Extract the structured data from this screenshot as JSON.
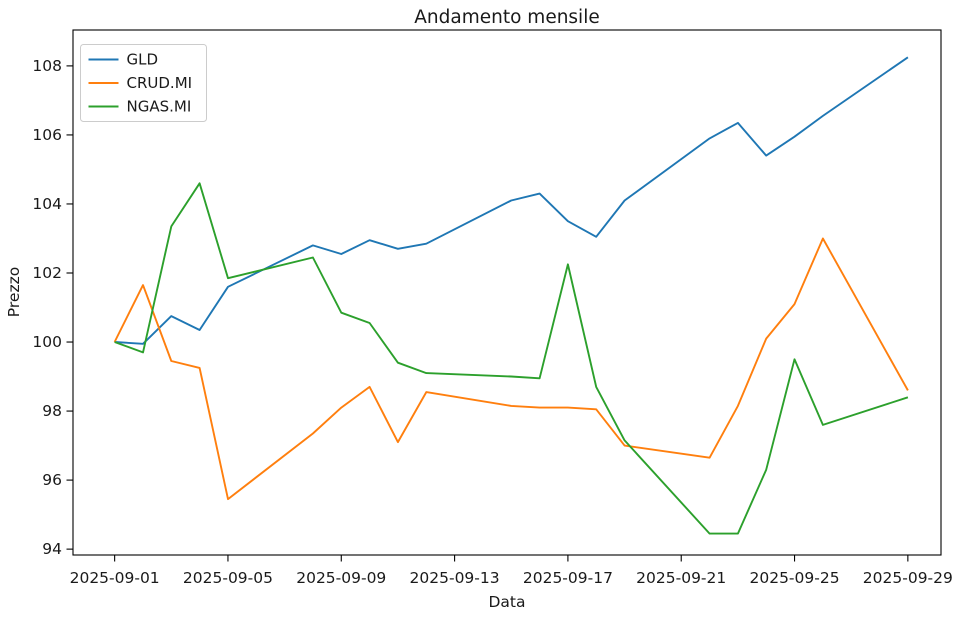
{
  "figure": {
    "background": "#ffffff",
    "text_color": "#1a1a1a",
    "axis_color": "#000000"
  },
  "chart_data": {
    "type": "line",
    "title": "Andamento mensile",
    "xlabel": "Data",
    "ylabel": "Prezzo",
    "grid": false,
    "legend_position": "upper-left",
    "x": [
      "2025-09-01",
      "2025-09-02",
      "2025-09-03",
      "2025-09-04",
      "2025-09-05",
      "2025-09-08",
      "2025-09-09",
      "2025-09-10",
      "2025-09-11",
      "2025-09-12",
      "2025-09-15",
      "2025-09-16",
      "2025-09-17",
      "2025-09-18",
      "2025-09-19",
      "2025-09-22",
      "2025-09-23",
      "2025-09-24",
      "2025-09-25",
      "2025-09-26",
      "2025-09-29"
    ],
    "series": [
      {
        "name": "GLD",
        "color": "#1f77b4",
        "values": [
          100.0,
          99.95,
          100.75,
          100.35,
          101.6,
          102.8,
          102.55,
          102.95,
          102.7,
          102.85,
          104.1,
          104.3,
          103.5,
          103.05,
          104.1,
          105.9,
          106.35,
          105.4,
          105.95,
          106.55,
          108.25
        ]
      },
      {
        "name": "CRUD.MI",
        "color": "#ff7f0e",
        "values": [
          100.0,
          101.65,
          99.45,
          99.25,
          95.45,
          97.35,
          98.1,
          98.7,
          97.1,
          98.55,
          98.15,
          98.1,
          98.1,
          98.05,
          97.0,
          96.65,
          98.15,
          100.1,
          101.1,
          103.0,
          98.6
        ]
      },
      {
        "name": "NGAS.MI",
        "color": "#2ca02c",
        "values": [
          100.0,
          99.7,
          103.35,
          104.6,
          101.85,
          102.45,
          100.85,
          100.55,
          99.4,
          99.1,
          99.0,
          98.95,
          102.25,
          98.7,
          97.15,
          94.45,
          94.45,
          96.3,
          99.5,
          97.6,
          98.4
        ]
      }
    ],
    "x_tick_labels": [
      "2025-09-01",
      "2025-09-05",
      "2025-09-09",
      "2025-09-13",
      "2025-09-17",
      "2025-09-21",
      "2025-09-25",
      "2025-09-29"
    ],
    "y_ticks": [
      94,
      96,
      98,
      100,
      102,
      104,
      106,
      108
    ],
    "xlim_days_from_first": [
      -1.47,
      29.17
    ],
    "ylim": [
      93.83,
      109.04
    ]
  }
}
